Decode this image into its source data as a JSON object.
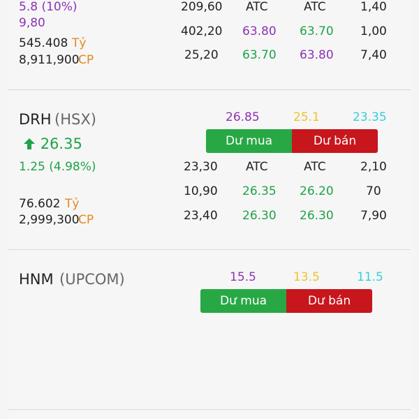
{
  "row1": {
    "change": "5.8 (10%)",
    "extra_value": "9,80",
    "volume_value": "545.408",
    "volume_unit": "Tỷ",
    "shares_value": "8,911,900",
    "shares_unit": "CP",
    "rows": [
      {
        "c1": "209,60",
        "c2": "ATC",
        "c3": "ATC",
        "c4": "1,40"
      },
      {
        "c1": "402,20",
        "c2": "63.80",
        "c3": "63.70",
        "c4": "1,00"
      },
      {
        "c1": "25,20",
        "c2": "63.70",
        "c3": "63.80",
        "c4": "7,40"
      }
    ]
  },
  "row2": {
    "ticker": "DRH",
    "exchange": "(HSX)",
    "price": "26.35",
    "change": "1.25 (4.98%)",
    "ceiling": "26.85",
    "reference": "25.1",
    "floor": "23.35",
    "buy_label": "Dư mua",
    "sell_label": "Dư bán",
    "volume_value": "76.602",
    "volume_unit": "Tỷ",
    "shares_value": "2,999,300",
    "shares_unit": "CP",
    "rows": [
      {
        "c1": "23,30",
        "c2": "ATC",
        "c3": "ATC",
        "c4": "2,10"
      },
      {
        "c1": "10,90",
        "c2": "26.35",
        "c3": "26.20",
        "c4": "70"
      },
      {
        "c1": "23,40",
        "c2": "26.30",
        "c3": "26.30",
        "c4": "7,90"
      }
    ]
  },
  "row3": {
    "ticker": "HNM",
    "exchange": "(UPCOM)",
    "ceiling": "15.5",
    "reference": "13.5",
    "floor": "11.5",
    "buy_label": "Dư mua",
    "sell_label": "Dư bán"
  },
  "icons": {
    "up": "arrow-up-icon"
  },
  "colors": {
    "ceiling": "#8e32b5",
    "up": "#1fa347",
    "reference": "#f0c12a",
    "floor": "#35cfd9",
    "buy": "#27a844",
    "sell": "#c7161c",
    "unit": "#e38a1d"
  }
}
